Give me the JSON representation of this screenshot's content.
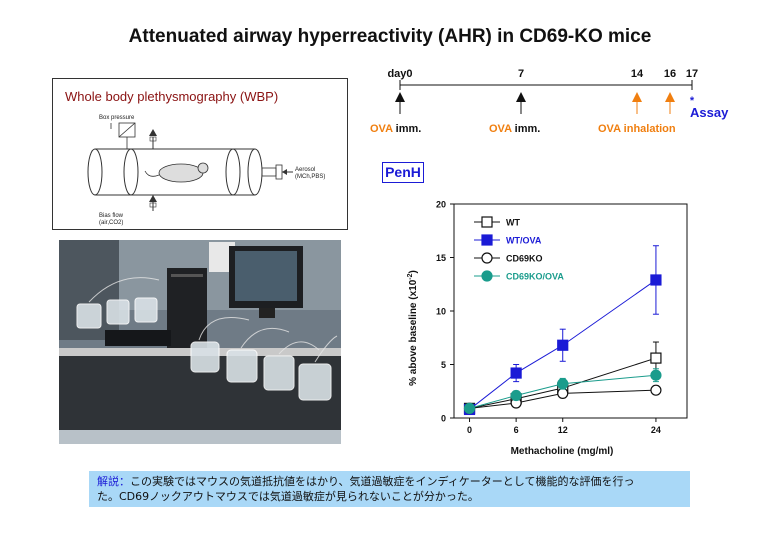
{
  "title": "Attenuated airway hyperreactivity (AHR) in CD69-KO mice",
  "wbp": {
    "title": "Whole body plethysmography (WBP)",
    "box_pressure": "Box pressure",
    "aerosol_1": "Aerosol",
    "aerosol_2": "(MCh,PBS)",
    "bias_flow_1": "Bias flow",
    "bias_flow_2": "(air,CO2)"
  },
  "timeline": {
    "ticks": [
      "day0",
      "7",
      "14",
      "16",
      "17"
    ],
    "events": [
      {
        "label": "OVA",
        "suffix": " imm."
      },
      {
        "label": "OVA",
        "suffix": " imm."
      },
      {
        "label": "OVA inhalation",
        "suffix": ""
      }
    ],
    "assay_star": "*",
    "assay": "Assay",
    "colors": {
      "imm_marker": "#111111",
      "inhalation": "#f07f10",
      "assay": "#1b1bd6"
    }
  },
  "penh_label": "PenH",
  "chart_data": {
    "type": "line",
    "xlabel": "Methacholine (mg/ml)",
    "ylabel": "% above baseline (x10",
    "ylabel_sup": "-2",
    "ylabel_end": ")",
    "x": [
      0,
      6,
      12,
      24
    ],
    "x_ticks": [
      "0",
      "6",
      "12",
      "24"
    ],
    "y_ticks": [
      "0",
      "5",
      "10",
      "15",
      "20"
    ],
    "ylim": [
      0,
      20
    ],
    "legend_position": "top-left",
    "series": [
      {
        "name": "WT",
        "values": [
          0.9,
          1.8,
          2.8,
          5.6
        ],
        "err": [
          0.3,
          0.4,
          0.5,
          1.5
        ],
        "color": "#111111",
        "marker": "square-open"
      },
      {
        "name": "WT/OVA",
        "values": [
          0.8,
          4.2,
          6.8,
          12.9
        ],
        "err": [
          0.3,
          0.8,
          1.5,
          3.2
        ],
        "color": "#1b1bd6",
        "marker": "square-filled"
      },
      {
        "name": "CD69KO",
        "values": [
          0.9,
          1.4,
          2.3,
          2.6
        ],
        "err": [
          0.2,
          0.3,
          0.4,
          0.4
        ],
        "color": "#111111",
        "marker": "circle-open"
      },
      {
        "name": "CD69KO/OVA",
        "values": [
          0.9,
          2.1,
          3.2,
          4.0
        ],
        "err": [
          0.2,
          0.4,
          0.5,
          0.6
        ],
        "color": "#1a9c8c",
        "marker": "circle-filled"
      }
    ]
  },
  "note": {
    "label": "解説：",
    "text_line1": "この実験ではマウスの気道抵抗値をはかり、気道過敏症をインディケーターとして機能的な評価を行っ",
    "text_line2": "た。CD69ノックアウトマウスでは気道過敏症が見られないことが分かった。"
  }
}
